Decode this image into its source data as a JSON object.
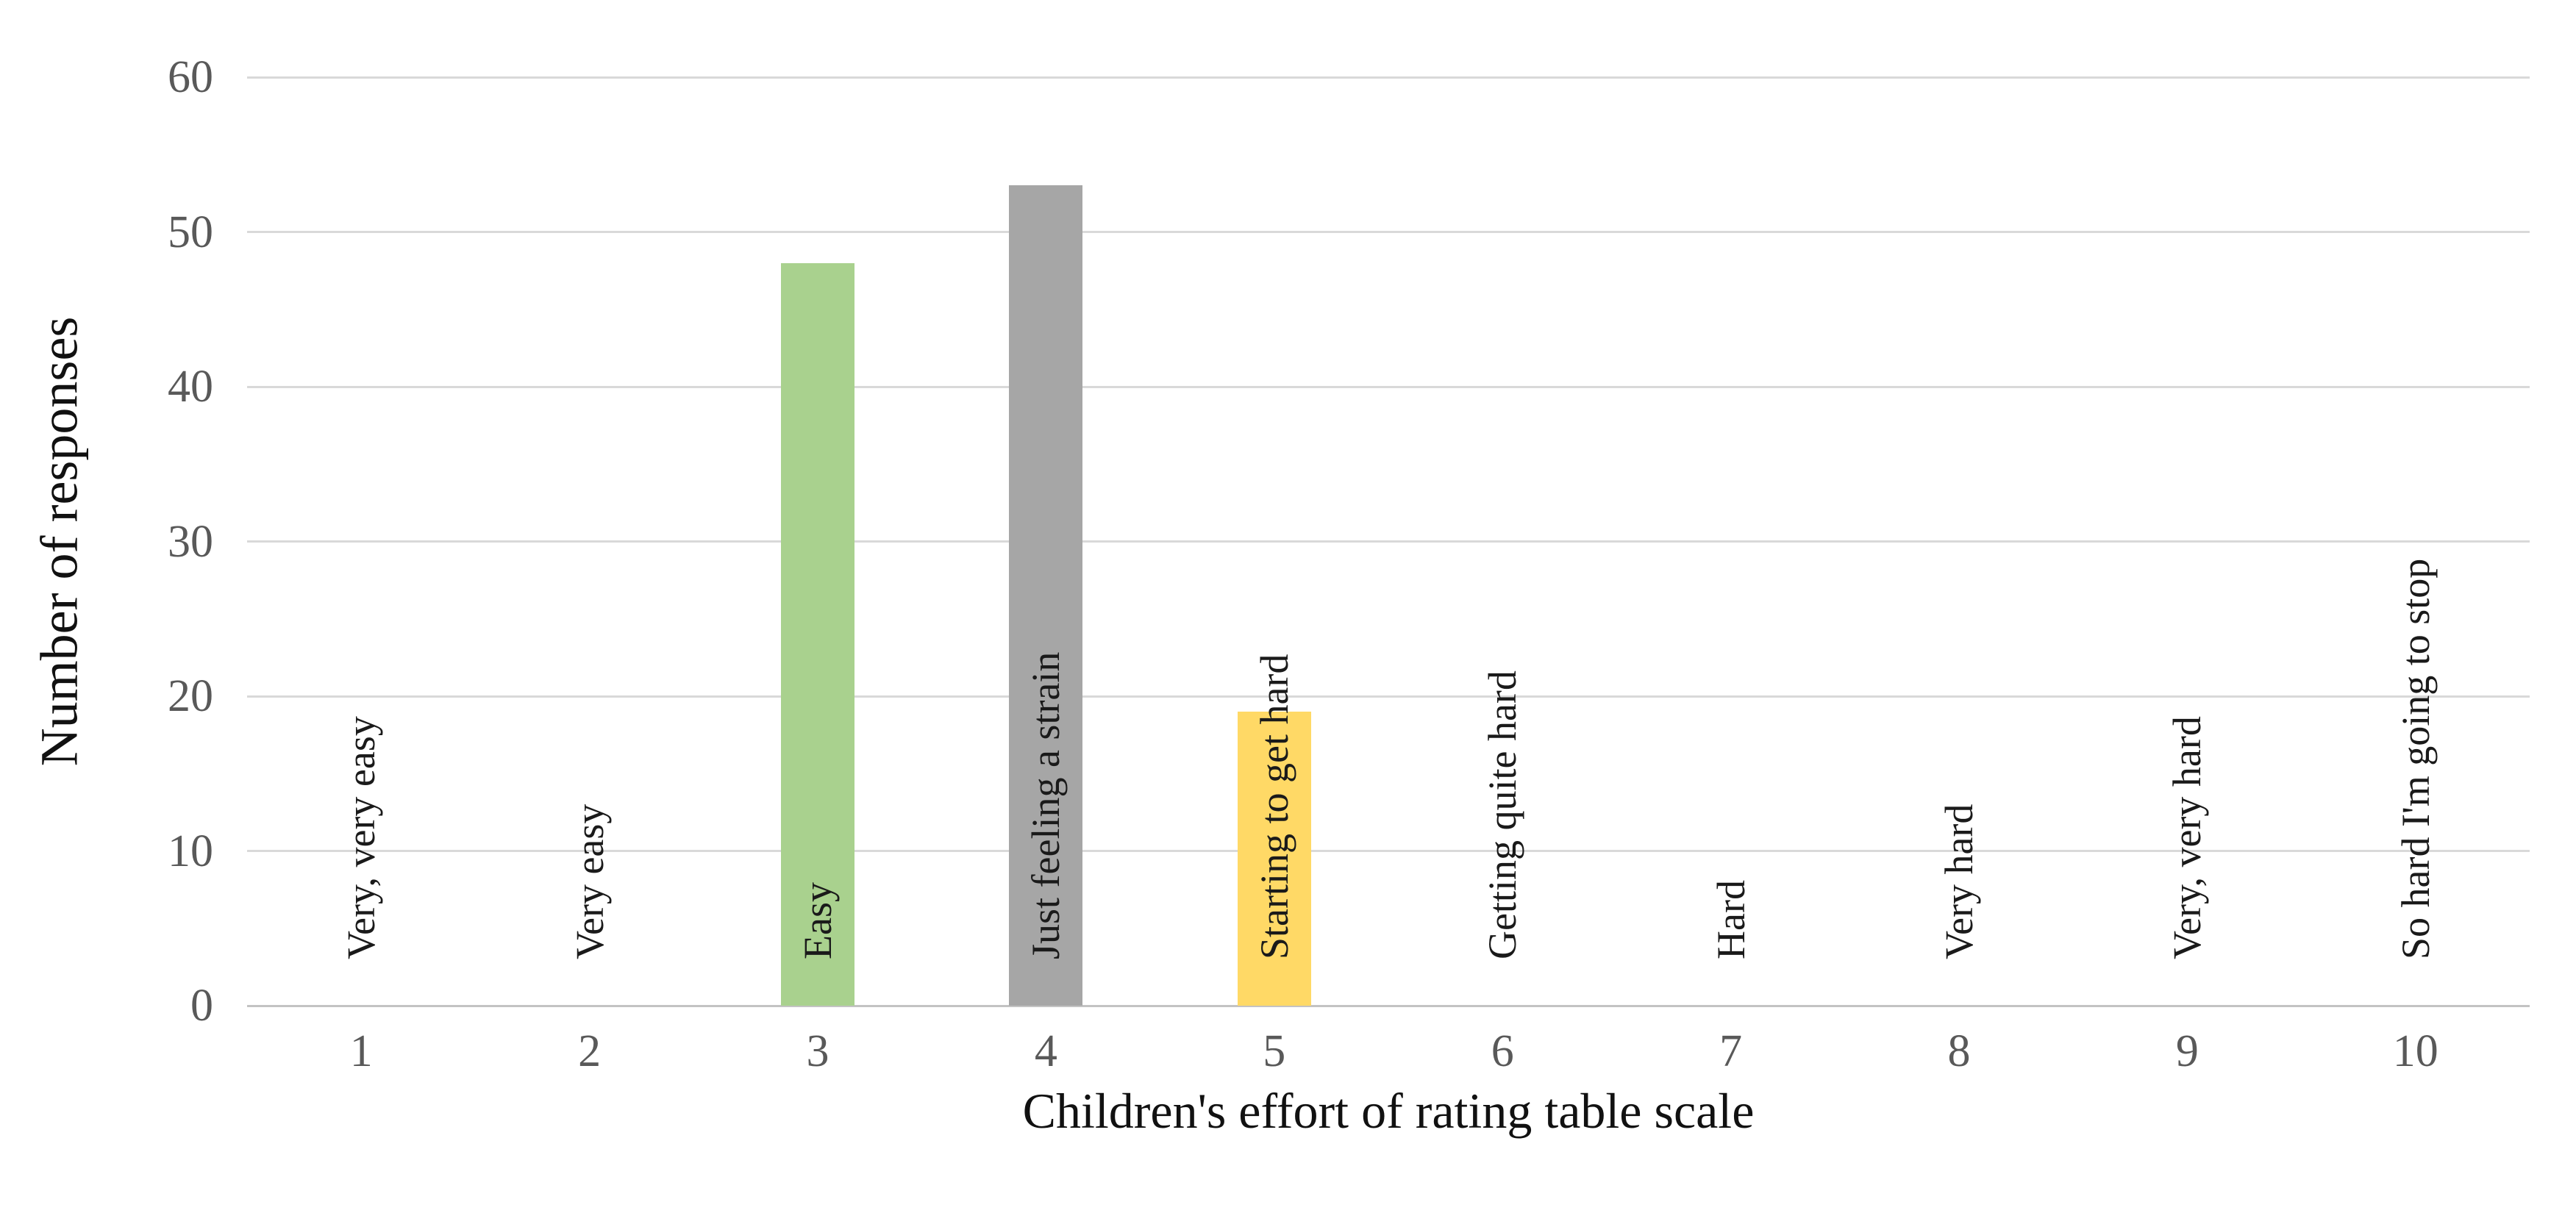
{
  "chart_data": {
    "type": "bar",
    "title": "",
    "xlabel": "Children's effort of rating table scale",
    "ylabel": "Number of responses",
    "categories": [
      "1",
      "2",
      "3",
      "4",
      "5",
      "6",
      "7",
      "8",
      "9",
      "10"
    ],
    "category_labels": [
      "Very, very easy",
      "Very easy",
      "Easy",
      "Just feeling a strain",
      "Starting to get hard",
      "Getting quite hard",
      "Hard",
      "Very hard",
      "Very, very hard",
      "So hard I'm going to stop"
    ],
    "values": [
      0,
      0,
      48,
      53,
      19,
      0,
      0,
      0,
      0,
      0
    ],
    "bar_colors": [
      "",
      "",
      "#A9D18E",
      "#A6A6A6",
      "#FFD966",
      "",
      "",
      "",
      "",
      ""
    ],
    "ylim": [
      0,
      60
    ],
    "ytick_step": 10,
    "grid": true,
    "legend_position": "none",
    "gridline_color": "#D9D9D9",
    "axis_line_color": "#C3C3C3",
    "tick_label_color": "#595959",
    "label_color": "#1a1a1a"
  }
}
